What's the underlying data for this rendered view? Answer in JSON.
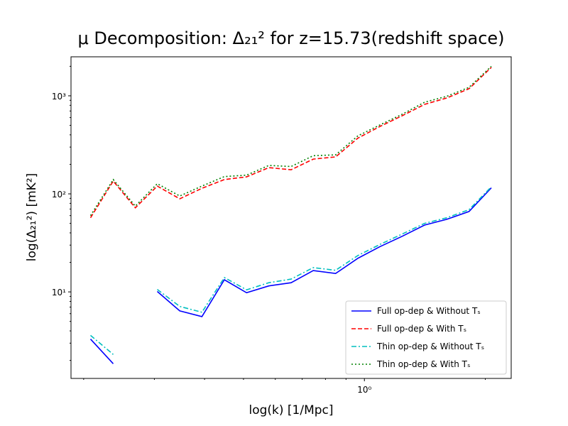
{
  "chart_data": {
    "type": "line",
    "title": "μ Decomposition: Δ₂₁² for z=15.73(redshift space)",
    "x_label": "log(k) [1/Mpc]",
    "y_label": "log(Δ₂₁²) [mK²]",
    "x": [
      0.208,
      0.237,
      0.269,
      0.305,
      0.347,
      0.394,
      0.448,
      0.509,
      0.578,
      0.657,
      0.746,
      0.848,
      0.963,
      1.094,
      1.243,
      1.412,
      1.604,
      1.822,
      2.07
    ],
    "series": [
      {
        "name": "Full op-dep & Without Tₛ",
        "color": "#0000ff",
        "style": "solid",
        "values": [
          3.3,
          1.85,
          null,
          10.1,
          6.4,
          5.6,
          13.3,
          9.8,
          11.5,
          12.4,
          16.5,
          15.4,
          22,
          29,
          37,
          48,
          55,
          66,
          115
        ]
      },
      {
        "name": "Full op-dep & With Tₛ",
        "color": "#ff0000",
        "style": "dashed",
        "values": [
          57,
          135,
          72,
          120,
          89,
          114,
          140,
          149,
          185,
          176,
          226,
          238,
          370,
          488,
          627,
          818,
          950,
          1180,
          1950
        ]
      },
      {
        "name": "Thin op-dep & Without Tₛ",
        "color": "#00bfbf",
        "style": "dashdot",
        "values": [
          3.6,
          2.3,
          null,
          10.6,
          7.1,
          6.2,
          14,
          10.5,
          12.4,
          13.5,
          17.7,
          16.6,
          23.5,
          30.5,
          39,
          50,
          57,
          69,
          118
        ]
      },
      {
        "name": "Thin op-dep & With Tₛ",
        "color": "#008000",
        "style": "dotted",
        "values": [
          60,
          140,
          75,
          127,
          95,
          120,
          150,
          155,
          195,
          190,
          245,
          250,
          390,
          505,
          650,
          860,
          990,
          1220,
          2000
        ]
      }
    ],
    "xlog": true,
    "ylog": true,
    "xlim": [
      0.186,
      2.32
    ],
    "ylim": [
      1.31,
      2500
    ],
    "xticks": [
      {
        "value": 1,
        "label": "10⁰"
      }
    ],
    "xminorticks": [
      0.2,
      0.3,
      0.4,
      0.5,
      0.6,
      0.7,
      0.8,
      0.9,
      2
    ],
    "yticks": [
      {
        "value": 10,
        "label": "10¹"
      },
      {
        "value": 100,
        "label": "10²"
      },
      {
        "value": 1000,
        "label": "10³"
      }
    ],
    "yminorticks": [
      2,
      3,
      4,
      5,
      6,
      7,
      8,
      9,
      20,
      30,
      40,
      50,
      60,
      70,
      80,
      90,
      200,
      300,
      400,
      500,
      600,
      700,
      800,
      900,
      2000
    ],
    "grid": false,
    "legend": "lower right"
  }
}
